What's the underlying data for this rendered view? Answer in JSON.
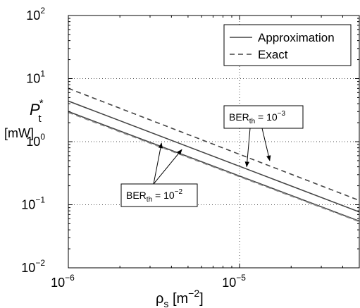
{
  "chart_data": {
    "type": "line",
    "xlabel": {
      "base": "ρ",
      "sub": "s",
      "unit_open": " [m",
      "unit_sup": "−2",
      "unit_close": "]"
    },
    "ylabel": {
      "base": "P",
      "sub": "t",
      "sup": "*",
      "unit": "[mW]"
    },
    "x_scale": "log",
    "y_scale": "log",
    "xlim": [
      1e-06,
      5e-05
    ],
    "ylim": [
      0.01,
      100
    ],
    "grid": "dotted",
    "legend_position": "top-right",
    "x_ticks": [
      {
        "value": 1e-06,
        "base": "10",
        "exp": "−6"
      },
      {
        "value": 1e-05,
        "base": "10",
        "exp": "−5"
      }
    ],
    "y_ticks": [
      {
        "value": 0.01,
        "base": "10",
        "exp": "−2"
      },
      {
        "value": 0.1,
        "base": "10",
        "exp": "−1"
      },
      {
        "value": 1,
        "base": "10",
        "exp": "0"
      },
      {
        "value": 10,
        "base": "10",
        "exp": "1"
      },
      {
        "value": 100,
        "base": "10",
        "exp": "2"
      }
    ],
    "series": [
      {
        "name": "Approximation",
        "style": "solid",
        "color": "#444444",
        "group": "BER_th = 10^-3",
        "x": [
          1e-06,
          5e-05
        ],
        "y": [
          4.4,
          0.077
        ]
      },
      {
        "name": "Exact",
        "style": "dashed",
        "color": "#444444",
        "group": "BER_th = 10^-3",
        "x": [
          1e-06,
          5e-05
        ],
        "y": [
          7.0,
          0.117
        ]
      },
      {
        "name": "Approximation",
        "style": "solid",
        "color": "#444444",
        "group": "BER_th = 10^-2",
        "x": [
          1e-06,
          5e-05
        ],
        "y": [
          3.0,
          0.055
        ]
      },
      {
        "name": "Exact",
        "style": "dashed",
        "color": "#888888",
        "group": "BER_th = 10^-2",
        "x": [
          1e-06,
          5e-05
        ],
        "y": [
          2.9,
          0.054
        ]
      }
    ],
    "legend": [
      {
        "label": "Approximation",
        "style": "solid"
      },
      {
        "label": "Exact",
        "style": "dashed"
      }
    ],
    "annotations": [
      {
        "id": "ber3",
        "main": "BER",
        "sub": "th",
        "eq": " = 10",
        "sup": "−3",
        "targets": [
          {
            "x": 1.1e-05,
            "y": 0.4
          },
          {
            "x": 1.5e-05,
            "y": 0.5
          }
        ]
      },
      {
        "id": "ber2",
        "main": "BER",
        "sub": "th",
        "eq": " = 10",
        "sup": "−2",
        "targets": [
          {
            "x": 3.5e-06,
            "y": 0.95
          },
          {
            "x": 4.6e-06,
            "y": 0.75
          }
        ]
      }
    ]
  }
}
